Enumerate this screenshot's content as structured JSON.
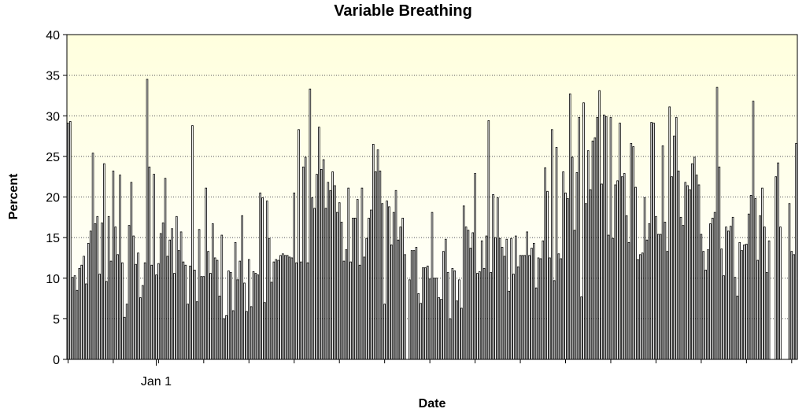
{
  "chart_data": {
    "type": "bar",
    "title": "Variable Breathing",
    "xlabel": "Date",
    "ylabel": "Percent",
    "ylim": [
      0,
      40
    ],
    "yticks": [
      0,
      5,
      10,
      15,
      20,
      25,
      30,
      35,
      40
    ],
    "x_tick_labels": [
      {
        "label": "Jan 1",
        "index": 39
      }
    ],
    "grid": "horizontal dotted",
    "colors": {
      "bar_fill": "#ffffff",
      "bar_stroke": "#000000",
      "background_top": "#ffffde",
      "background_bottom": "#ffffff"
    },
    "values": [
      29.1,
      29.3,
      10.1,
      10.3,
      8.5,
      11.2,
      11.6,
      12.7,
      9.3,
      14.3,
      15.8,
      25.4,
      16.7,
      17.6,
      10.5,
      16.8,
      24.1,
      9.6,
      17.6,
      12.1,
      23.2,
      16.3,
      12.9,
      22.7,
      11.9,
      5.2,
      6.8,
      16.5,
      21.8,
      15.2,
      11.7,
      13.1,
      7.6,
      9.1,
      11.9,
      34.5,
      23.7,
      11.6,
      22.8,
      10.4,
      11.8,
      15.5,
      16.8,
      22.3,
      12.7,
      14.7,
      16.1,
      10.6,
      17.6,
      13.4,
      15.7,
      12.0,
      11.6,
      6.8,
      11.5,
      28.8,
      11.0,
      7.1,
      16.0,
      10.2,
      10.2,
      21.1,
      13.3,
      10.6,
      16.7,
      12.5,
      12.2,
      7.8,
      15.3,
      5.0,
      5.4,
      10.9,
      10.7,
      6.0,
      14.4,
      9.8,
      12.1,
      17.7,
      9.4,
      5.9,
      12.3,
      6.5,
      10.8,
      10.6,
      10.4,
      20.5,
      19.9,
      7.0,
      19.5,
      14.9,
      9.5,
      12.0,
      12.3,
      12.2,
      12.8,
      13.0,
      12.8,
      12.8,
      12.6,
      12.5,
      20.5,
      11.9,
      28.3,
      12.0,
      23.7,
      24.9,
      11.9,
      33.3,
      19.9,
      18.6,
      22.8,
      28.6,
      23.4,
      24.6,
      18.6,
      21.8,
      20.8,
      23.1,
      21.4,
      18.1,
      19.3,
      16.9,
      12.1,
      13.5,
      21.1,
      12.0,
      17.4,
      17.4,
      19.7,
      11.6,
      21.1,
      12.6,
      14.9,
      17.4,
      18.4,
      26.5,
      23.1,
      25.8,
      23.2,
      19.2,
      6.8,
      19.5,
      18.8,
      14.1,
      18.1,
      20.8,
      14.7,
      16.3,
      17.4,
      12.9,
      0.0,
      9.8,
      13.4,
      13.4,
      13.8,
      8.1,
      6.9,
      11.3,
      11.3,
      11.5,
      9.9,
      18.1,
      10.0,
      10.0,
      7.6,
      7.4,
      13.3,
      14.8,
      10.7,
      5.0,
      11.2,
      10.9,
      7.2,
      9.8,
      6.3,
      18.9,
      16.3,
      15.9,
      13.7,
      15.6,
      22.9,
      10.6,
      10.8,
      14.6,
      11.2,
      15.2,
      29.4,
      10.7,
      20.3,
      15.0,
      19.9,
      14.9,
      13.8,
      12.7,
      14.8,
      8.4,
      14.9,
      10.5,
      15.2,
      11.4,
      12.8,
      12.8,
      12.8,
      15.7,
      12.8,
      13.7,
      14.3,
      8.8,
      12.5,
      12.4,
      14.6,
      23.6,
      20.7,
      12.5,
      28.3,
      9.7,
      26.1,
      13.0,
      12.4,
      23.1,
      20.5,
      19.8,
      32.7,
      24.9,
      15.9,
      23.0,
      29.8,
      7.7,
      31.6,
      19.2,
      25.7,
      20.9,
      26.9,
      27.3,
      29.8,
      33.1,
      21.6,
      30.1,
      29.9,
      15.3,
      29.8,
      14.9,
      21.5,
      22.0,
      29.1,
      22.5,
      22.9,
      17.7,
      14.4,
      26.6,
      26.2,
      21.2,
      12.3,
      12.9,
      13.1,
      19.9,
      14.7,
      16.7,
      29.2,
      29.1,
      17.6,
      15.4,
      15.4,
      26.3,
      16.9,
      13.3,
      31.1,
      22.5,
      27.5,
      29.8,
      23.2,
      17.5,
      16.5,
      21.8,
      21.4,
      20.9,
      24.1,
      24.9,
      22.7,
      21.5,
      15.4,
      13.3,
      11.0,
      13.5,
      16.7,
      17.4,
      18.1,
      33.5,
      23.7,
      13.6,
      10.3,
      16.3,
      15.8,
      16.4,
      17.5,
      10.1,
      7.8,
      14.4,
      13.4,
      14.1,
      14.2,
      17.9,
      20.2,
      31.8,
      19.8,
      12.2,
      17.7,
      21.1,
      16.3,
      10.7,
      14.6,
      0.0,
      0.0,
      22.5,
      24.2,
      16.3,
      0.0,
      0.0,
      0.0,
      19.2,
      13.3,
      12.9,
      26.6
    ]
  }
}
